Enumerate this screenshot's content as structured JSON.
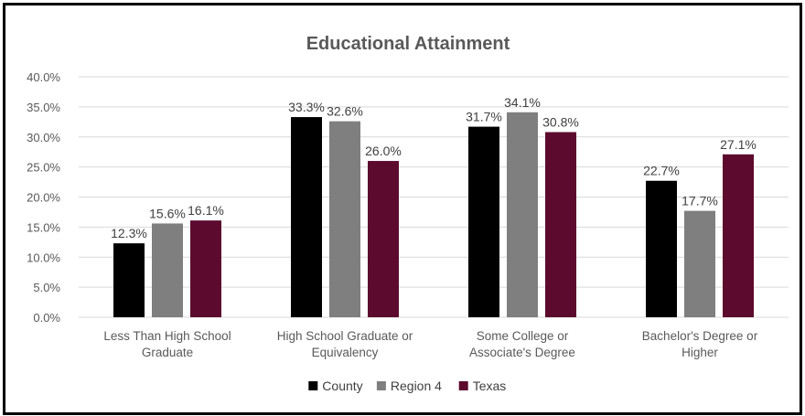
{
  "chart_data": {
    "type": "bar",
    "title": "Educational Attainment",
    "categories": [
      [
        "Less Than High School",
        "Graduate"
      ],
      [
        "High School Graduate or",
        "Equivalency"
      ],
      [
        "Some College or",
        "Associate's Degree"
      ],
      [
        "Bachelor's Degree or",
        "Higher"
      ]
    ],
    "series": [
      {
        "name": "County",
        "color": "#000000",
        "values": [
          12.3,
          33.3,
          31.7,
          22.7
        ],
        "labels": [
          "12.3%",
          "33.3%",
          "31.7%",
          "22.7%"
        ]
      },
      {
        "name": "Region 4",
        "color": "#7f7f7f",
        "values": [
          15.6,
          32.6,
          34.1,
          17.7
        ],
        "labels": [
          "15.6%",
          "32.6%",
          "34.1%",
          "17.7%"
        ]
      },
      {
        "name": "Texas",
        "color": "#5c0a2e",
        "values": [
          16.1,
          26.0,
          30.8,
          27.1
        ],
        "labels": [
          "16.1%",
          "26.0%",
          "30.8%",
          "27.1%"
        ]
      }
    ],
    "ylim": [
      0,
      40
    ],
    "yticks": [
      "0.0%",
      "5.0%",
      "10.0%",
      "15.0%",
      "20.0%",
      "25.0%",
      "30.0%",
      "35.0%",
      "40.0%"
    ],
    "grid": true,
    "legend": "bottom"
  }
}
